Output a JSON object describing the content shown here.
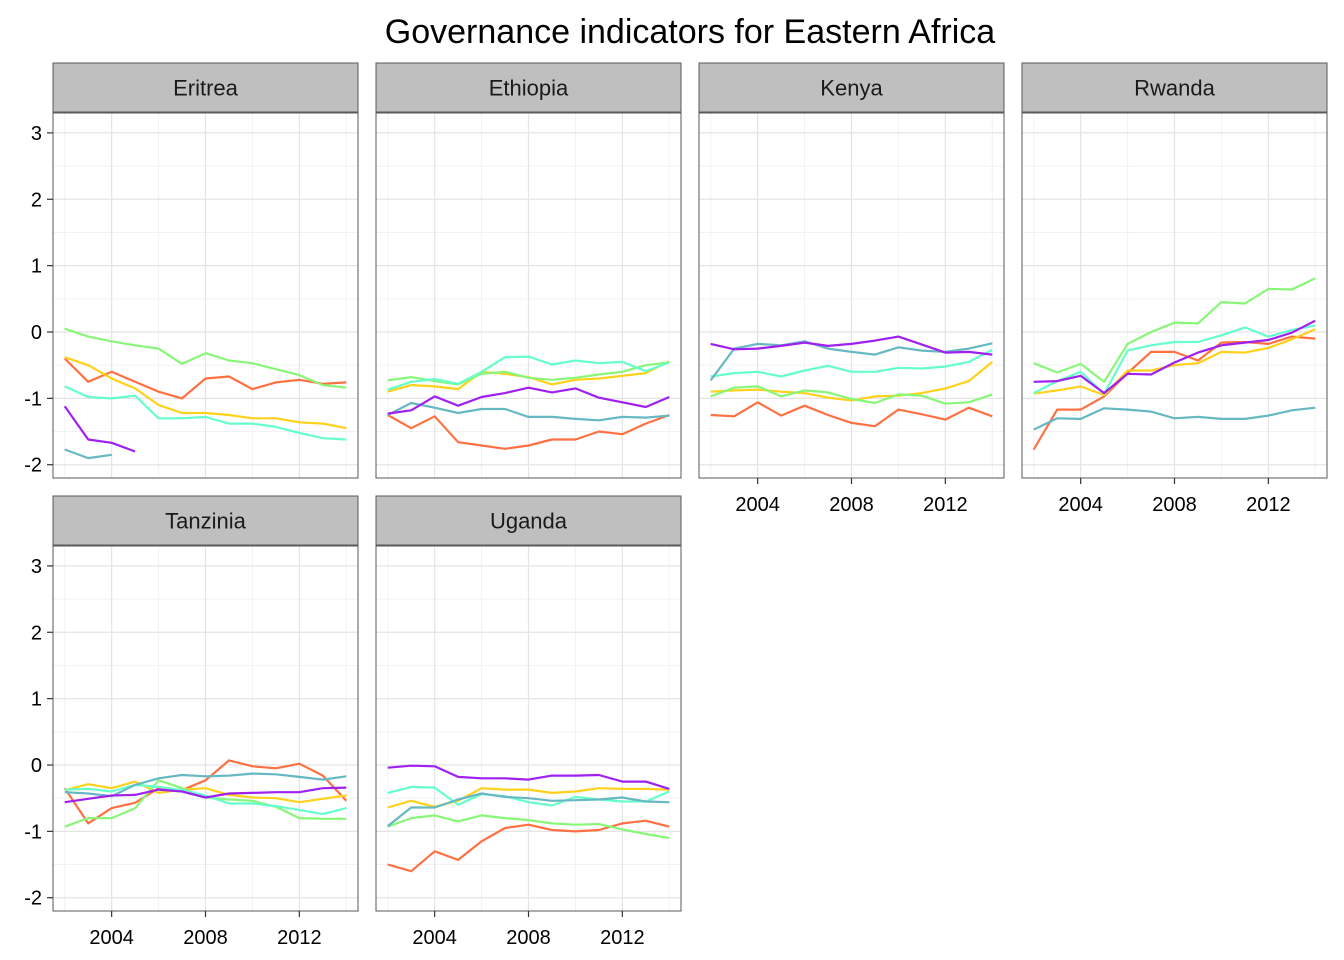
{
  "chart_data": {
    "type": "line",
    "title": "Governance indicators for Eastern Africa",
    "xlabel": "",
    "ylabel": "",
    "xlim": [
      2001.5,
      2014.5
    ],
    "ylim": [
      -2.2,
      3.3
    ],
    "x_ticks": [
      2004,
      2008,
      2012
    ],
    "y_ticks": [
      -2,
      -1,
      0,
      1,
      2,
      3
    ],
    "y_tick_labels": [
      "-2",
      "-1",
      "0",
      "1",
      "2",
      "3"
    ],
    "grid": true,
    "legend": "none",
    "x": [
      2002,
      2003,
      2004,
      2005,
      2006,
      2007,
      2008,
      2009,
      2010,
      2011,
      2012,
      2013,
      2014
    ],
    "series_colors": [
      "#F8766D",
      "#FFD700",
      "#7CFC00",
      "#40E0D0",
      "#48A9A6",
      "#A020F0"
    ],
    "panels": [
      {
        "name": "Eritrea",
        "series": [
          {
            "color": "#FF7043",
            "values": [
              -0.4,
              -0.75,
              -0.6,
              -0.75,
              -0.9,
              -1.0,
              -0.7,
              -0.67,
              -0.86,
              -0.76,
              -0.72,
              -0.78,
              -0.76
            ]
          },
          {
            "color": "#FFD11A",
            "values": [
              -0.38,
              -0.5,
              -0.7,
              -0.85,
              -1.1,
              -1.22,
              -1.22,
              -1.25,
              -1.3,
              -1.3,
              -1.36,
              -1.38,
              -1.45
            ]
          },
          {
            "color": "#88F778",
            "values": [
              0.05,
              -0.07,
              -0.14,
              -0.2,
              -0.25,
              -0.48,
              -0.32,
              -0.43,
              -0.47,
              -0.56,
              -0.65,
              -0.8,
              -0.84
            ]
          },
          {
            "color": "#66FFCC",
            "values": [
              -0.82,
              -0.98,
              -1.0,
              -0.96,
              -1.3,
              -1.3,
              -1.28,
              -1.38,
              -1.38,
              -1.43,
              -1.52,
              -1.6,
              -1.62
            ]
          },
          {
            "color": "#66B8C2",
            "values": [
              -1.77,
              -1.9,
              -1.85,
              null,
              null,
              null,
              null,
              null,
              null,
              null,
              null,
              null,
              null
            ]
          },
          {
            "color": "#A020F0",
            "values": [
              -1.12,
              -1.62,
              -1.67,
              -1.8,
              null,
              null,
              null,
              null,
              null,
              null,
              null,
              null,
              null
            ]
          }
        ]
      },
      {
        "name": "Ethiopia",
        "series": [
          {
            "color": "#FF7043",
            "values": [
              -1.25,
              -1.45,
              -1.27,
              -1.66,
              -1.71,
              -1.76,
              -1.71,
              -1.62,
              -1.62,
              -1.5,
              -1.54,
              -1.38,
              -1.25
            ]
          },
          {
            "color": "#FFD11A",
            "values": [
              -0.9,
              -0.8,
              -0.82,
              -0.86,
              -0.6,
              -0.63,
              -0.68,
              -0.79,
              -0.72,
              -0.7,
              -0.66,
              -0.62,
              -0.44
            ]
          },
          {
            "color": "#88F778",
            "values": [
              -0.73,
              -0.68,
              -0.74,
              -0.79,
              -0.63,
              -0.6,
              -0.69,
              -0.72,
              -0.69,
              -0.64,
              -0.6,
              -0.5,
              -0.46
            ]
          },
          {
            "color": "#66FFCC",
            "values": [
              -0.87,
              -0.75,
              -0.71,
              -0.78,
              -0.6,
              -0.38,
              -0.37,
              -0.49,
              -0.43,
              -0.47,
              -0.45,
              -0.59,
              -0.46
            ]
          },
          {
            "color": "#66B8C2",
            "values": [
              -1.25,
              -1.07,
              -1.14,
              -1.22,
              -1.16,
              -1.16,
              -1.28,
              -1.28,
              -1.31,
              -1.33,
              -1.28,
              -1.29,
              -1.26
            ]
          },
          {
            "color": "#A020F0",
            "values": [
              -1.23,
              -1.18,
              -0.97,
              -1.11,
              -0.98,
              -0.92,
              -0.84,
              -0.91,
              -0.85,
              -0.99,
              -1.06,
              -1.13,
              -0.98
            ]
          }
        ]
      },
      {
        "name": "Kenya",
        "series": [
          {
            "color": "#FF7043",
            "values": [
              -1.25,
              -1.27,
              -1.06,
              -1.26,
              -1.11,
              -1.25,
              -1.37,
              -1.42,
              -1.17,
              -1.24,
              -1.32,
              -1.14,
              -1.27
            ]
          },
          {
            "color": "#FFD11A",
            "values": [
              -0.9,
              -0.88,
              -0.87,
              -0.9,
              -0.92,
              -0.99,
              -1.03,
              -0.97,
              -0.96,
              -0.92,
              -0.85,
              -0.74,
              -0.45
            ]
          },
          {
            "color": "#88F778",
            "values": [
              -0.97,
              -0.84,
              -0.82,
              -0.97,
              -0.88,
              -0.91,
              -1.01,
              -1.07,
              -0.94,
              -0.96,
              -1.08,
              -1.06,
              -0.94
            ]
          },
          {
            "color": "#66FFCC",
            "values": [
              -0.67,
              -0.62,
              -0.6,
              -0.67,
              -0.58,
              -0.51,
              -0.6,
              -0.6,
              -0.54,
              -0.55,
              -0.52,
              -0.45,
              -0.27
            ]
          },
          {
            "color": "#66B8C2",
            "values": [
              -0.73,
              -0.25,
              -0.18,
              -0.2,
              -0.14,
              -0.25,
              -0.3,
              -0.34,
              -0.23,
              -0.28,
              -0.3,
              -0.25,
              -0.17
            ]
          },
          {
            "color": "#A020F0",
            "values": [
              -0.18,
              -0.26,
              -0.25,
              -0.21,
              -0.16,
              -0.21,
              -0.18,
              -0.13,
              -0.07,
              -0.19,
              -0.31,
              -0.3,
              -0.34
            ]
          }
        ]
      },
      {
        "name": "Rwanda",
        "series": [
          {
            "color": "#FF7043",
            "values": [
              -1.77,
              -1.17,
              -1.17,
              -0.97,
              -0.62,
              -0.3,
              -0.3,
              -0.43,
              -0.16,
              -0.15,
              -0.18,
              -0.07,
              -0.1
            ]
          },
          {
            "color": "#FFD11A",
            "values": [
              -0.93,
              -0.88,
              -0.82,
              -0.95,
              -0.58,
              -0.58,
              -0.5,
              -0.47,
              -0.3,
              -0.31,
              -0.24,
              -0.11,
              0.04
            ]
          },
          {
            "color": "#88F778",
            "values": [
              -0.47,
              -0.61,
              -0.48,
              -0.75,
              -0.18,
              0.0,
              0.14,
              0.13,
              0.45,
              0.43,
              0.65,
              0.64,
              0.81
            ]
          },
          {
            "color": "#66FFCC",
            "values": [
              -0.92,
              -0.74,
              -0.6,
              -0.93,
              -0.28,
              -0.2,
              -0.15,
              -0.15,
              -0.05,
              0.07,
              -0.07,
              0.03,
              0.1
            ]
          },
          {
            "color": "#66B8C2",
            "values": [
              -1.47,
              -1.3,
              -1.31,
              -1.15,
              -1.17,
              -1.2,
              -1.3,
              -1.28,
              -1.31,
              -1.31,
              -1.26,
              -1.18,
              -1.14
            ]
          },
          {
            "color": "#A020F0",
            "values": [
              -0.75,
              -0.74,
              -0.66,
              -0.92,
              -0.63,
              -0.64,
              -0.46,
              -0.31,
              -0.2,
              -0.16,
              -0.12,
              -0.01,
              0.17
            ]
          }
        ]
      },
      {
        "name": "Tanzinia",
        "series": [
          {
            "color": "#FF7043",
            "values": [
              -0.35,
              -0.88,
              -0.65,
              -0.57,
              -0.35,
              -0.38,
              -0.23,
              0.07,
              -0.02,
              -0.05,
              0.02,
              -0.16,
              -0.54
            ]
          },
          {
            "color": "#FFD11A",
            "values": [
              -0.38,
              -0.29,
              -0.35,
              -0.25,
              -0.42,
              -0.37,
              -0.35,
              -0.45,
              -0.49,
              -0.5,
              -0.56,
              -0.51,
              -0.46
            ]
          },
          {
            "color": "#88F778",
            "values": [
              -0.93,
              -0.8,
              -0.8,
              -0.65,
              -0.23,
              -0.35,
              -0.49,
              -0.52,
              -0.54,
              -0.63,
              -0.8,
              -0.81,
              -0.81
            ]
          },
          {
            "color": "#66FFCC",
            "values": [
              -0.37,
              -0.36,
              -0.4,
              -0.3,
              -0.33,
              -0.38,
              -0.46,
              -0.58,
              -0.58,
              -0.62,
              -0.68,
              -0.74,
              -0.65
            ]
          },
          {
            "color": "#66B8C2",
            "values": [
              -0.41,
              -0.43,
              -0.47,
              -0.3,
              -0.2,
              -0.15,
              -0.17,
              -0.16,
              -0.13,
              -0.14,
              -0.18,
              -0.22,
              -0.17
            ]
          },
          {
            "color": "#A020F0",
            "values": [
              -0.56,
              -0.51,
              -0.46,
              -0.45,
              -0.37,
              -0.4,
              -0.49,
              -0.43,
              -0.42,
              -0.41,
              -0.41,
              -0.35,
              -0.34
            ]
          }
        ]
      },
      {
        "name": "Uganda",
        "series": [
          {
            "color": "#FF7043",
            "values": [
              -1.5,
              -1.6,
              -1.3,
              -1.43,
              -1.15,
              -0.95,
              -0.9,
              -0.98,
              -1.0,
              -0.98,
              -0.88,
              -0.84,
              -0.93
            ]
          },
          {
            "color": "#FFD11A",
            "values": [
              -0.64,
              -0.54,
              -0.63,
              -0.54,
              -0.35,
              -0.37,
              -0.37,
              -0.42,
              -0.4,
              -0.35,
              -0.36,
              -0.36,
              -0.37
            ]
          },
          {
            "color": "#88F778",
            "values": [
              -0.93,
              -0.8,
              -0.76,
              -0.85,
              -0.76,
              -0.8,
              -0.83,
              -0.88,
              -0.9,
              -0.89,
              -0.97,
              -1.04,
              -1.1
            ]
          },
          {
            "color": "#66FFCC",
            "values": [
              -0.42,
              -0.33,
              -0.34,
              -0.6,
              -0.44,
              -0.47,
              -0.56,
              -0.61,
              -0.48,
              -0.52,
              -0.55,
              -0.55,
              -0.4
            ]
          },
          {
            "color": "#66B8C2",
            "values": [
              -0.92,
              -0.64,
              -0.64,
              -0.52,
              -0.43,
              -0.48,
              -0.5,
              -0.54,
              -0.53,
              -0.52,
              -0.49,
              -0.55,
              -0.56
            ]
          },
          {
            "color": "#A020F0",
            "values": [
              -0.04,
              -0.01,
              -0.02,
              -0.18,
              -0.2,
              -0.2,
              -0.22,
              -0.16,
              -0.16,
              -0.15,
              -0.25,
              -0.25,
              -0.36
            ]
          }
        ]
      }
    ]
  }
}
